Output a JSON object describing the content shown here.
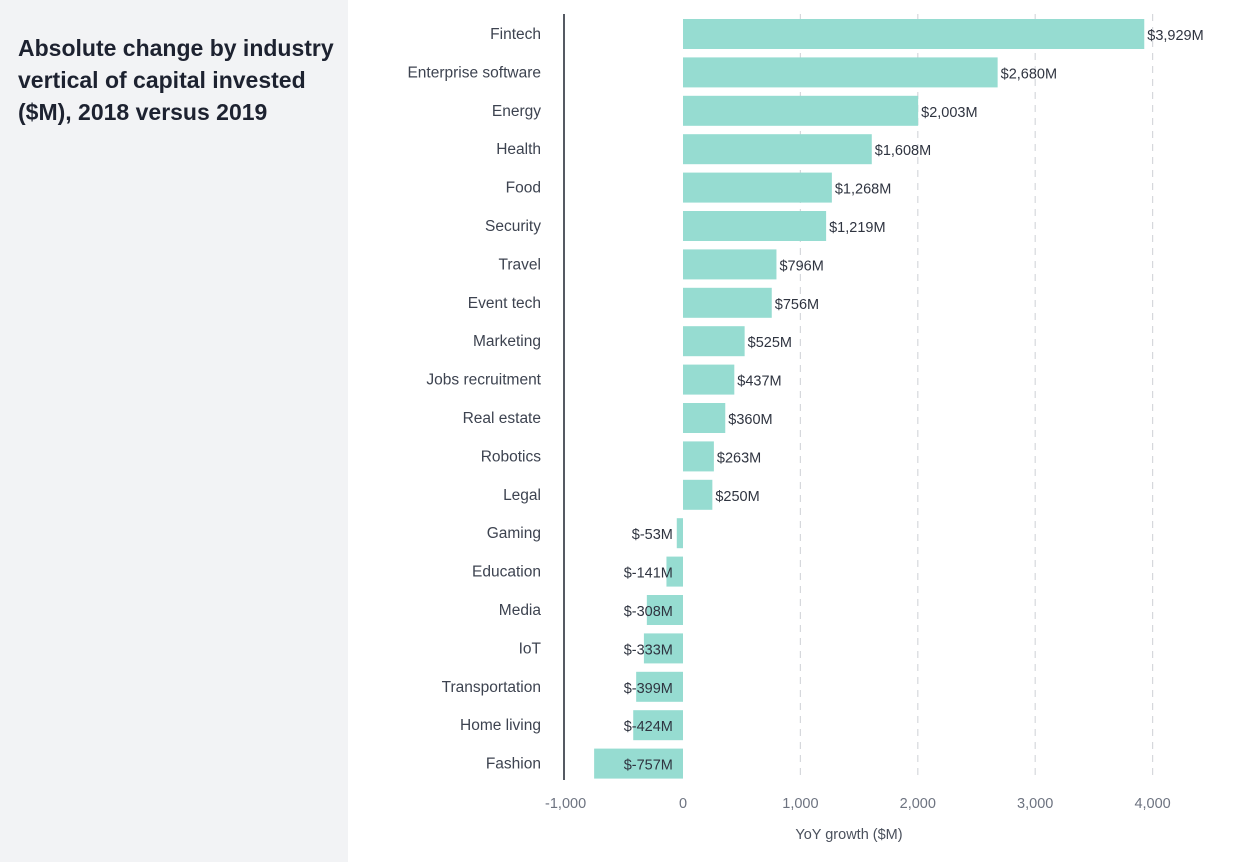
{
  "sidebar": {
    "title": "Absolute change by industry vertical of capital invested ($M), 2018 versus 2019"
  },
  "colors": {
    "bar": "#96dcd1",
    "sidebar_bg": "#f2f3f5",
    "grid": "#d6d8dc",
    "axis": "#555a63"
  },
  "chart_data": {
    "type": "bar",
    "orientation": "horizontal",
    "title": "Absolute change by industry vertical of capital invested ($M), 2018 versus 2019",
    "xlabel": "YoY growth ($M)",
    "ylabel": "",
    "xlim": [
      -1000,
      4000
    ],
    "xticks": [
      -1000,
      0,
      1000,
      2000,
      3000,
      4000
    ],
    "xtick_labels": [
      "-1,000",
      "0",
      "1,000",
      "2,000",
      "3,000",
      "4,000"
    ],
    "grid": "vertical dashed",
    "categories": [
      "Fintech",
      "Enterprise software",
      "Energy",
      "Health",
      "Food",
      "Security",
      "Travel",
      "Event tech",
      "Marketing",
      "Jobs recruitment",
      "Real estate",
      "Robotics",
      "Legal",
      "Gaming",
      "Education",
      "Media",
      "IoT",
      "Transportation",
      "Home living",
      "Fashion"
    ],
    "values": [
      3929,
      2680,
      2003,
      1608,
      1268,
      1219,
      796,
      756,
      525,
      437,
      360,
      263,
      250,
      -53,
      -141,
      -308,
      -333,
      -399,
      -424,
      -757
    ],
    "value_labels": [
      "$3,929M",
      "$2,680M",
      "$2,003M",
      "$1,608M",
      "$1,268M",
      "$1,219M",
      "$796M",
      "$756M",
      "$525M",
      "$437M",
      "$360M",
      "$263M",
      "$250M",
      "$-53M",
      "$-141M",
      "$-308M",
      "$-333M",
      "$-399M",
      "$-424M",
      "$-757M"
    ]
  }
}
